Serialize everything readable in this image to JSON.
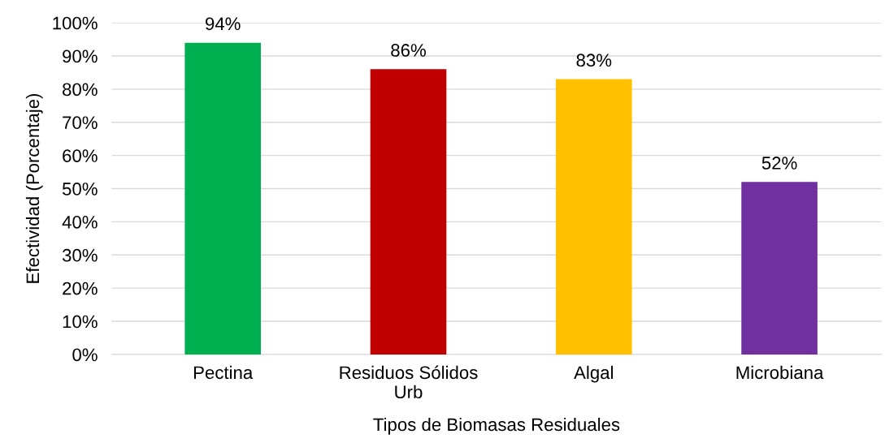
{
  "chart_data": {
    "type": "bar",
    "xlabel": "Tipos de Biomasas Residuales",
    "ylabel": "Efectividad (Porcentaje)",
    "categories": [
      "Pectina",
      "Residuos Sólidos\nUrb",
      "Algal",
      "Microbiana"
    ],
    "values": [
      94,
      86,
      83,
      52
    ],
    "colors": [
      "#00b050",
      "#c00000",
      "#ffc000",
      "#7030a0"
    ],
    "value_labels": [
      "94%",
      "86%",
      "83%",
      "52%"
    ],
    "ylim": [
      0,
      100
    ],
    "yticks": [
      {
        "value": 0,
        "label": "0%"
      },
      {
        "value": 10,
        "label": "10%"
      },
      {
        "value": 20,
        "label": "20%"
      },
      {
        "value": 30,
        "label": "30%"
      },
      {
        "value": 40,
        "label": "40%"
      },
      {
        "value": 50,
        "label": "50%"
      },
      {
        "value": 60,
        "label": "60%"
      },
      {
        "value": 70,
        "label": "70%"
      },
      {
        "value": 80,
        "label": "80%"
      },
      {
        "value": 90,
        "label": "90%"
      },
      {
        "value": 100,
        "label": "100%"
      }
    ],
    "grid": "y"
  }
}
